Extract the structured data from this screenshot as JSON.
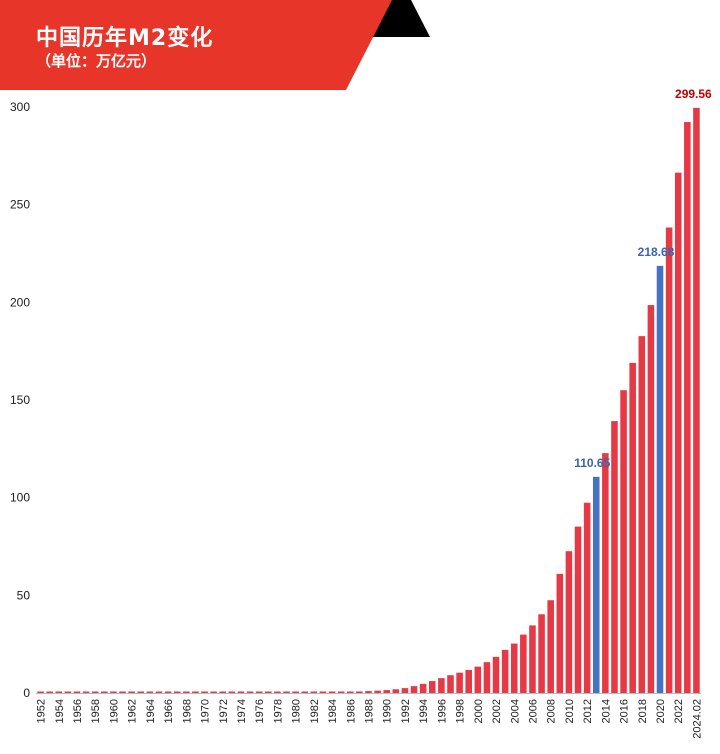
{
  "header": {
    "title": "中国历年M2变化",
    "subtitle": "（单位：万亿元）",
    "banner_color": "#e8352a",
    "triangle_color": "#000000"
  },
  "colors": {
    "bar": "#e63946",
    "bar_highlight": "#4472c4",
    "label_highlight": "#3a63b0",
    "label_final": "#c00000"
  },
  "chart_data": {
    "type": "bar",
    "title": "中国历年M2变化",
    "ylabel": "",
    "xlabel": "",
    "ylim": [
      0,
      300
    ],
    "yticks": [
      0,
      50,
      100,
      150,
      200,
      250,
      300
    ],
    "grid": false,
    "categories": [
      "1952",
      "1953",
      "1954",
      "1955",
      "1956",
      "1957",
      "1958",
      "1959",
      "1960",
      "1961",
      "1962",
      "1963",
      "1964",
      "1965",
      "1966",
      "1967",
      "1968",
      "1969",
      "1970",
      "1971",
      "1972",
      "1973",
      "1974",
      "1975",
      "1976",
      "1977",
      "1978",
      "1979",
      "1980",
      "1981",
      "1982",
      "1983",
      "1984",
      "1985",
      "1986",
      "1987",
      "1988",
      "1989",
      "1990",
      "1991",
      "1992",
      "1993",
      "1994",
      "1995",
      "1996",
      "1997",
      "1998",
      "1999",
      "2000",
      "2001",
      "2002",
      "2003",
      "2004",
      "2005",
      "2006",
      "2007",
      "2008",
      "2009",
      "2010",
      "2011",
      "2012",
      "2013",
      "2014",
      "2015",
      "2016",
      "2017",
      "2018",
      "2019",
      "2020",
      "2021",
      "2022",
      "2023",
      "2024.02"
    ],
    "tick_labels": [
      "1952",
      "1954",
      "1956",
      "1958",
      "1960",
      "1962",
      "1964",
      "1966",
      "1968",
      "1970",
      "1972",
      "1974",
      "1976",
      "1978",
      "1980",
      "1982",
      "1984",
      "1986",
      "1988",
      "1990",
      "1992",
      "1994",
      "1996",
      "1998",
      "2000",
      "2002",
      "2004",
      "2006",
      "2008",
      "2010",
      "2012",
      "2014",
      "2016",
      "2018",
      "2020",
      "2022",
      "2024.02"
    ],
    "values": [
      0.1,
      0.1,
      0.1,
      0.1,
      0.1,
      0.1,
      0.1,
      0.1,
      0.1,
      0.1,
      0.1,
      0.1,
      0.1,
      0.1,
      0.1,
      0.1,
      0.1,
      0.1,
      0.1,
      0.1,
      0.1,
      0.1,
      0.1,
      0.1,
      0.1,
      0.1,
      0.1,
      0.1,
      0.12,
      0.15,
      0.2,
      0.25,
      0.3,
      0.5,
      0.6,
      0.8,
      1.0,
      1.2,
      1.5,
      1.9,
      2.5,
      3.5,
      4.7,
      6.1,
      7.6,
      9.1,
      10.4,
      11.8,
      13.5,
      15.8,
      18.5,
      22.1,
      25.3,
      29.9,
      34.6,
      40.3,
      47.5,
      61.0,
      72.6,
      85.2,
      97.4,
      110.65,
      122.8,
      139.2,
      155.0,
      169.0,
      182.7,
      198.6,
      218.68,
      238.3,
      266.4,
      292.3,
      299.56
    ],
    "highlight": [
      "2013",
      "2020"
    ],
    "data_labels": [
      {
        "category": "2013",
        "text": "110.65",
        "color": "#3a63b0"
      },
      {
        "category": "2020",
        "text": "218.68",
        "color": "#3a63b0"
      },
      {
        "category": "2024.02",
        "text": "299.56",
        "color": "#c00000"
      }
    ]
  }
}
